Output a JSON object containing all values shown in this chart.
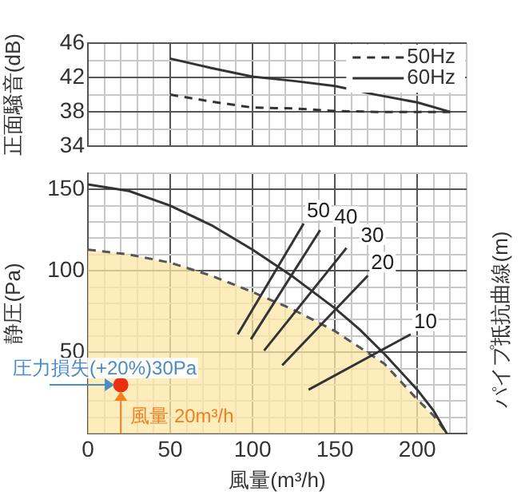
{
  "chart_data": [
    {
      "type": "line",
      "ylabel": "正面騒音(dB)",
      "xlim": [
        0,
        230
      ],
      "ylim": [
        34,
        46
      ],
      "xticks": [
        0,
        {
          "value": 10,
          "label": null
        },
        {
          "value": 20,
          "label": null
        },
        {
          "value": 30,
          "label": null
        },
        {
          "value": 40,
          "label": null
        },
        50,
        {
          "value": 60,
          "label": null
        },
        {
          "value": 70,
          "label": null
        },
        {
          "value": 80,
          "label": null
        },
        {
          "value": 90,
          "label": null
        },
        100,
        {
          "value": 110,
          "label": null
        },
        {
          "value": 120,
          "label": null
        },
        {
          "value": 130,
          "label": null
        },
        {
          "value": 140,
          "label": null
        },
        150,
        {
          "value": 160,
          "label": null
        },
        {
          "value": 170,
          "label": null
        },
        {
          "value": 180,
          "label": null
        },
        {
          "value": 190,
          "label": null
        },
        200,
        {
          "value": 210,
          "label": null
        },
        {
          "value": 220,
          "label": null
        },
        {
          "value": 230,
          "label": null
        }
      ],
      "yticks": [
        34,
        {
          "value": 36,
          "label": null
        },
        38,
        {
          "value": 40,
          "label": null
        },
        42,
        {
          "value": 44,
          "label": null
        },
        46
      ],
      "tick_labels": "y",
      "grid": true,
      "legend": "top right",
      "marker": "none",
      "series": [
        {
          "name": "50Hz",
          "color": "#333333",
          "line_style": "dashed",
          "x": [
            50,
            75,
            100,
            125,
            150,
            175,
            200,
            220
          ],
          "values": [
            40,
            39.2,
            38.5,
            38.4,
            38.1,
            38,
            38,
            38
          ]
        },
        {
          "name": "60Hz",
          "color": "#333333",
          "line_style": "solid",
          "x": [
            50,
            75,
            100,
            125,
            150,
            175,
            200,
            220
          ],
          "values": [
            44.2,
            43.1,
            42.1,
            41.6,
            41,
            40,
            39.1,
            38
          ]
        }
      ]
    },
    {
      "type": "line",
      "xlabel": "風量(m³/h)",
      "ylabel": "静圧(Pa)",
      "y2label": "パイプ抵抗曲線(m)",
      "xlim": [
        0,
        230
      ],
      "ylim": [
        0,
        160
      ],
      "xticks": [
        0,
        {
          "value": 10,
          "label": null
        },
        {
          "value": 20,
          "label": null
        },
        {
          "value": 30,
          "label": null
        },
        {
          "value": 40,
          "label": null
        },
        50,
        {
          "value": 60,
          "label": null
        },
        {
          "value": 70,
          "label": null
        },
        {
          "value": 80,
          "label": null
        },
        {
          "value": 90,
          "label": null
        },
        100,
        {
          "value": 110,
          "label": null
        },
        {
          "value": 120,
          "label": null
        },
        {
          "value": 130,
          "label": null
        },
        {
          "value": 140,
          "label": null
        },
        150,
        {
          "value": 160,
          "label": null
        },
        {
          "value": 170,
          "label": null
        },
        {
          "value": 180,
          "label": null
        },
        {
          "value": 190,
          "label": null
        },
        200,
        {
          "value": 210,
          "label": null
        },
        {
          "value": 220,
          "label": null
        },
        {
          "value": 230,
          "label": null
        }
      ],
      "yticks": [
        {
          "value": 0,
          "label": null
        },
        {
          "value": 10,
          "label": null
        },
        {
          "value": 20,
          "label": null
        },
        {
          "value": 30,
          "label": null
        },
        {
          "value": 40,
          "label": null
        },
        50,
        {
          "value": 60,
          "label": null
        },
        {
          "value": 70,
          "label": null
        },
        {
          "value": 80,
          "label": null
        },
        {
          "value": 90,
          "label": null
        },
        100,
        {
          "value": 110,
          "label": null
        },
        {
          "value": 120,
          "label": null
        },
        {
          "value": 130,
          "label": null
        },
        {
          "value": 140,
          "label": null
        },
        150,
        {
          "value": 160,
          "label": null
        }
      ],
      "grid": true,
      "legend": false,
      "marker": "none",
      "series": [
        {
          "type": "area",
          "color": "#fde7a8",
          "line_style": "dashed",
          "x": [
            0,
            25,
            50,
            75,
            100,
            125,
            150,
            165,
            180,
            200,
            210,
            218
          ],
          "values": [
            113,
            110,
            105,
            97,
            87,
            76,
            63,
            53,
            43,
            21,
            11,
            0
          ]
        },
        {
          "color": "#333333",
          "line_style": "solid",
          "x": [
            0,
            25,
            50,
            75,
            100,
            125,
            150,
            165,
            180,
            200,
            210,
            218
          ],
          "values": [
            153,
            149,
            140,
            128,
            113,
            96,
            77,
            64,
            49,
            27,
            14,
            0
          ]
        },
        {
          "name": "50",
          "color": "#333333",
          "x": [
            91,
            131
          ],
          "values": [
            61,
            129
          ]
        },
        {
          "name": "40",
          "color": "#333333",
          "x": [
            99,
            141
          ],
          "values": [
            58,
            125
          ]
        },
        {
          "name": "30",
          "color": "#333333",
          "x": [
            107,
            157
          ],
          "values": [
            51,
            114
          ]
        },
        {
          "name": "20",
          "color": "#333333",
          "x": [
            118,
            170
          ],
          "values": [
            42,
            97
          ]
        },
        {
          "name": "10",
          "color": "#333333",
          "x": [
            134,
            196
          ],
          "values": [
            27,
            61
          ]
        },
        {
          "type": "scatter",
          "color": "#e83010",
          "marker": "circle",
          "x": [
            20
          ],
          "values": [
            30
          ]
        }
      ],
      "annotations": [
        {
          "text": "圧力損失(+20%)30Pa",
          "x": 20,
          "y": 30
        },
        {
          "text": "風量 20m³/h",
          "x": 20,
          "y": 30
        }
      ]
    }
  ]
}
